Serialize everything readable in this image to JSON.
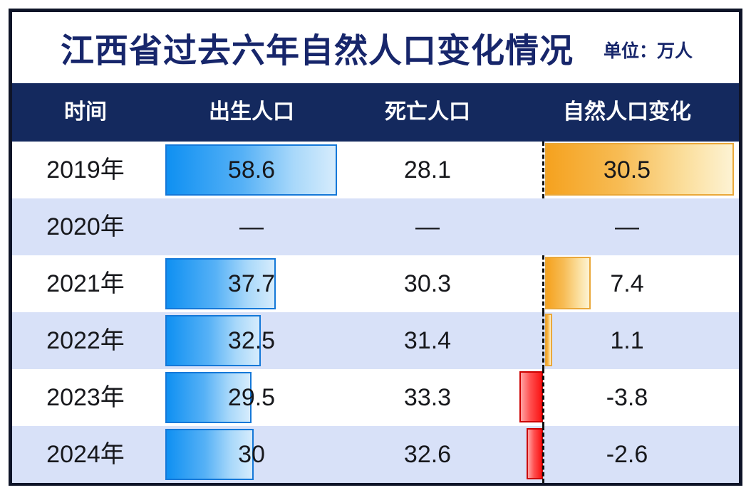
{
  "title": {
    "text": "江西省过去六年自然人口变化情况",
    "unit_label": "单位：万人"
  },
  "table": {
    "columns": [
      "时间",
      "出生人口",
      "死亡人口",
      "自然人口变化"
    ],
    "rows": [
      {
        "year": "2019年",
        "birth": "58.6",
        "death": "28.1",
        "change": "30.5"
      },
      {
        "year": "2020年",
        "birth": "—",
        "death": "—",
        "change": "—"
      },
      {
        "year": "2021年",
        "birth": "37.7",
        "death": "30.3",
        "change": "7.4"
      },
      {
        "year": "2022年",
        "birth": "32.5",
        "death": "31.4",
        "change": "1.1"
      },
      {
        "year": "2023年",
        "birth": "29.5",
        "death": "33.3",
        "change": "-3.8"
      },
      {
        "year": "2024年",
        "birth": "30",
        "death": "32.6",
        "change": "-2.6"
      }
    ]
  },
  "colors": {
    "frame_border": "#0e1428",
    "header_bg": "#14295e",
    "title_text": "#17266b",
    "row_alt_bg": "#d8e1f8",
    "bar_blue_start": "#0f90f2",
    "bar_blue_end": "#d6ecfc",
    "bar_blue_border": "#1578d8",
    "bar_orange_start": "#f5a21f",
    "bar_orange_end": "#fdf3d4",
    "bar_orange_border": "#eaa83a",
    "bar_red_start": "#ffa4a4",
    "bar_red_end": "#fa1414",
    "bar_red_border": "#cc0000",
    "axis_dash": "#101010"
  },
  "chart_data": {
    "type": "bar",
    "title": "江西省过去六年自然人口变化情况",
    "unit": "万人",
    "categories": [
      "2019年",
      "2020年",
      "2021年",
      "2022年",
      "2023年",
      "2024年"
    ],
    "series": [
      {
        "name": "出生人口",
        "values": [
          58.6,
          null,
          37.7,
          32.5,
          29.5,
          30
        ]
      },
      {
        "name": "死亡人口",
        "values": [
          28.1,
          null,
          30.3,
          31.4,
          33.3,
          32.6
        ]
      },
      {
        "name": "自然人口变化",
        "values": [
          30.5,
          null,
          7.4,
          1.1,
          -3.8,
          -2.6
        ]
      }
    ],
    "notes": "2020年数据缺失，以—表示；自然人口变化列以虚线为零轴，正值橙色条向右，负值红色条向左",
    "legend_position": "none",
    "grid": false
  }
}
